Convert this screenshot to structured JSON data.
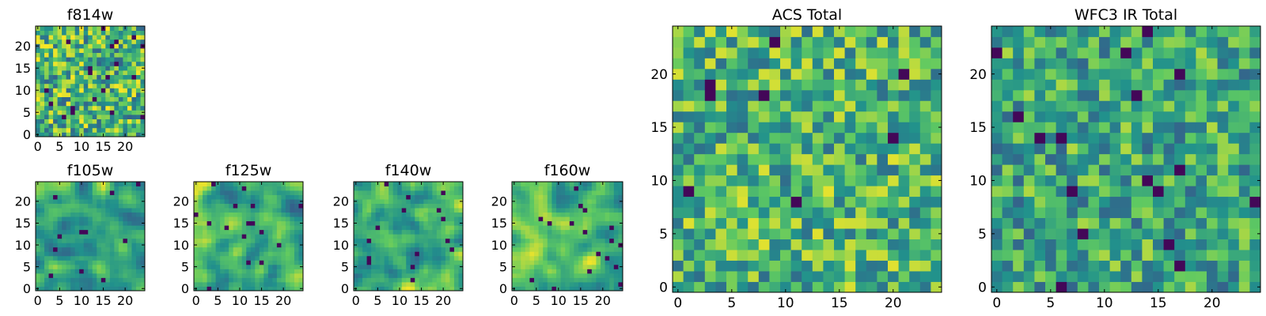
{
  "colormap": [
    "#440154",
    "#3b528b",
    "#21918c",
    "#5ec962",
    "#fde725"
  ],
  "chart_data": [
    {
      "id": "f814w",
      "type": "heatmap",
      "title": "f814w",
      "grid": [
        25,
        25
      ],
      "xlim": [
        -0.5,
        24.5
      ],
      "ylim": [
        -0.5,
        24.5
      ],
      "xticks": [
        "0",
        "5",
        "10",
        "15",
        "20"
      ],
      "yticks": [
        "0",
        "5",
        "10",
        "15",
        "20"
      ],
      "seed": 11,
      "mean": 0.66,
      "spread": 0.34,
      "smooth": 0.15
    },
    {
      "id": "f105w",
      "type": "heatmap",
      "title": "f105w",
      "grid": [
        25,
        25
      ],
      "xlim": [
        -0.5,
        24.5
      ],
      "ylim": [
        -0.5,
        24.5
      ],
      "xticks": [
        "0",
        "5",
        "10",
        "15",
        "20"
      ],
      "yticks": [
        "0",
        "5",
        "10",
        "15",
        "20"
      ],
      "seed": 23,
      "mean": 0.64,
      "spread": 0.32,
      "smooth": 0.55
    },
    {
      "id": "f125w",
      "type": "heatmap",
      "title": "f125w",
      "grid": [
        25,
        25
      ],
      "xlim": [
        -0.5,
        24.5
      ],
      "ylim": [
        -0.5,
        24.5
      ],
      "xticks": [
        "0",
        "5",
        "10",
        "15",
        "20"
      ],
      "yticks": [
        "0",
        "5",
        "10",
        "15",
        "20"
      ],
      "seed": 37,
      "mean": 0.64,
      "spread": 0.33,
      "smooth": 0.6
    },
    {
      "id": "f140w",
      "type": "heatmap",
      "title": "f140w",
      "grid": [
        25,
        25
      ],
      "xlim": [
        -0.5,
        24.5
      ],
      "ylim": [
        -0.5,
        24.5
      ],
      "xticks": [
        "0",
        "5",
        "10",
        "15",
        "20"
      ],
      "yticks": [
        "0",
        "5",
        "10",
        "15",
        "20"
      ],
      "seed": 41,
      "mean": 0.66,
      "spread": 0.32,
      "smooth": 0.65
    },
    {
      "id": "f160w",
      "type": "heatmap",
      "title": "f160w",
      "grid": [
        25,
        25
      ],
      "xlim": [
        -0.5,
        24.5
      ],
      "ylim": [
        -0.5,
        24.5
      ],
      "xticks": [
        "0",
        "5",
        "10",
        "15",
        "20"
      ],
      "yticks": [
        "0",
        "5",
        "10",
        "15",
        "20"
      ],
      "seed": 53,
      "mean": 0.68,
      "spread": 0.3,
      "smooth": 0.75
    },
    {
      "id": "acs-total",
      "type": "heatmap",
      "title": "ACS Total",
      "grid": [
        25,
        25
      ],
      "xlim": [
        -0.5,
        24.5
      ],
      "ylim": [
        -0.5,
        24.5
      ],
      "xticks": [
        "0",
        "5",
        "10",
        "15",
        "20"
      ],
      "yticks": [
        "0",
        "5",
        "10",
        "15",
        "20"
      ],
      "seed": 67,
      "mean": 0.66,
      "spread": 0.3,
      "smooth": 0.1
    },
    {
      "id": "wfc3-ir-total",
      "type": "heatmap",
      "title": "WFC3 IR Total",
      "grid": [
        25,
        25
      ],
      "xlim": [
        -0.5,
        24.5
      ],
      "ylim": [
        -0.5,
        24.5
      ],
      "xticks": [
        "0",
        "5",
        "10",
        "15",
        "20"
      ],
      "yticks": [
        "0",
        "5",
        "10",
        "15",
        "20"
      ],
      "seed": 79,
      "mean": 0.6,
      "spread": 0.28,
      "smooth": 0.1
    }
  ]
}
